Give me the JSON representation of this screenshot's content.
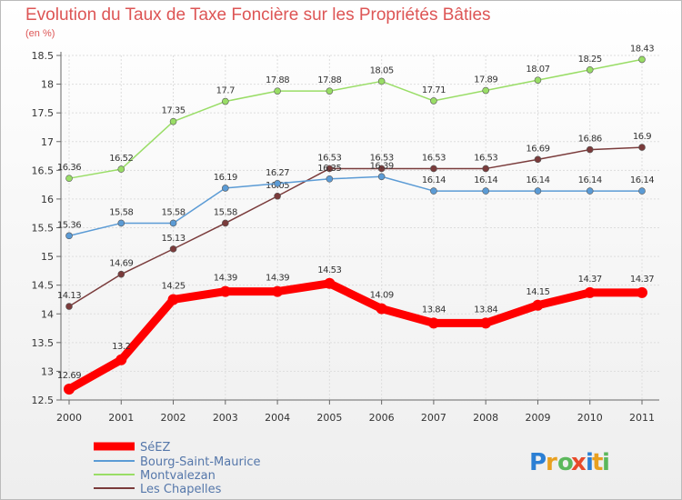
{
  "chart_data": {
    "type": "line",
    "title": "Evolution du Taux de Taxe Foncière sur les Propriétés Bâties",
    "subtitle": "(en %)",
    "x": [
      "2000",
      "2001",
      "2002",
      "2003",
      "2004",
      "2005",
      "2006",
      "2007",
      "2008",
      "2009",
      "2010",
      "2011"
    ],
    "ylim": [
      12.5,
      18.5
    ],
    "yticks": [
      "12.5",
      "13",
      "13.5",
      "14",
      "14.5",
      "15",
      "15.5",
      "16",
      "16.5",
      "17",
      "17.5",
      "18",
      "18.5"
    ],
    "grid": true,
    "legend": "bottom-left",
    "series": [
      {
        "name": "SéEZ",
        "color": "#ff0000",
        "values": [
          12.69,
          13.2,
          14.25,
          14.39,
          14.39,
          14.53,
          14.09,
          13.84,
          13.84,
          14.15,
          14.37,
          14.37
        ],
        "labels": [
          "12.69",
          "13.2",
          "14.25",
          "14.39",
          "14.39",
          "14.53",
          "14.09",
          "13.84",
          "13.84",
          "14.15",
          "14.37",
          "14.37"
        ]
      },
      {
        "name": "Bourg-Saint-Maurice",
        "color": "#5b9bd5",
        "values": [
          15.36,
          15.58,
          15.58,
          16.19,
          16.27,
          16.35,
          16.39,
          16.14,
          16.14,
          16.14,
          16.14,
          16.14
        ],
        "labels": [
          "15.36",
          "15.58",
          "15.58",
          "16.19",
          "16.27",
          "16.35",
          "16.39",
          "16.14",
          "16.14",
          "16.14",
          "16.14",
          "16.14"
        ]
      },
      {
        "name": "Montvalezan",
        "color": "#99dd66",
        "values": [
          16.36,
          16.52,
          17.35,
          17.7,
          17.88,
          17.88,
          18.05,
          17.71,
          17.89,
          18.07,
          18.25,
          18.43
        ],
        "labels": [
          "16.36",
          "16.52",
          "17.35",
          "17.7",
          "17.88",
          "17.88",
          "18.05",
          "17.71",
          "17.89",
          "18.07",
          "18.25",
          "18.43"
        ]
      },
      {
        "name": "Les Chapelles",
        "color": "#7a3b3b",
        "values": [
          14.13,
          14.69,
          15.13,
          15.58,
          16.05,
          16.53,
          16.53,
          16.53,
          16.53,
          16.69,
          16.86,
          16.9
        ],
        "labels": [
          "14.13",
          "14.69",
          "15.13",
          "15.58",
          "16.05",
          "16.53",
          "16.53",
          "16.53",
          "16.53",
          "16.69",
          "16.86",
          "16.9"
        ]
      }
    ]
  },
  "logo": "Proxiti"
}
